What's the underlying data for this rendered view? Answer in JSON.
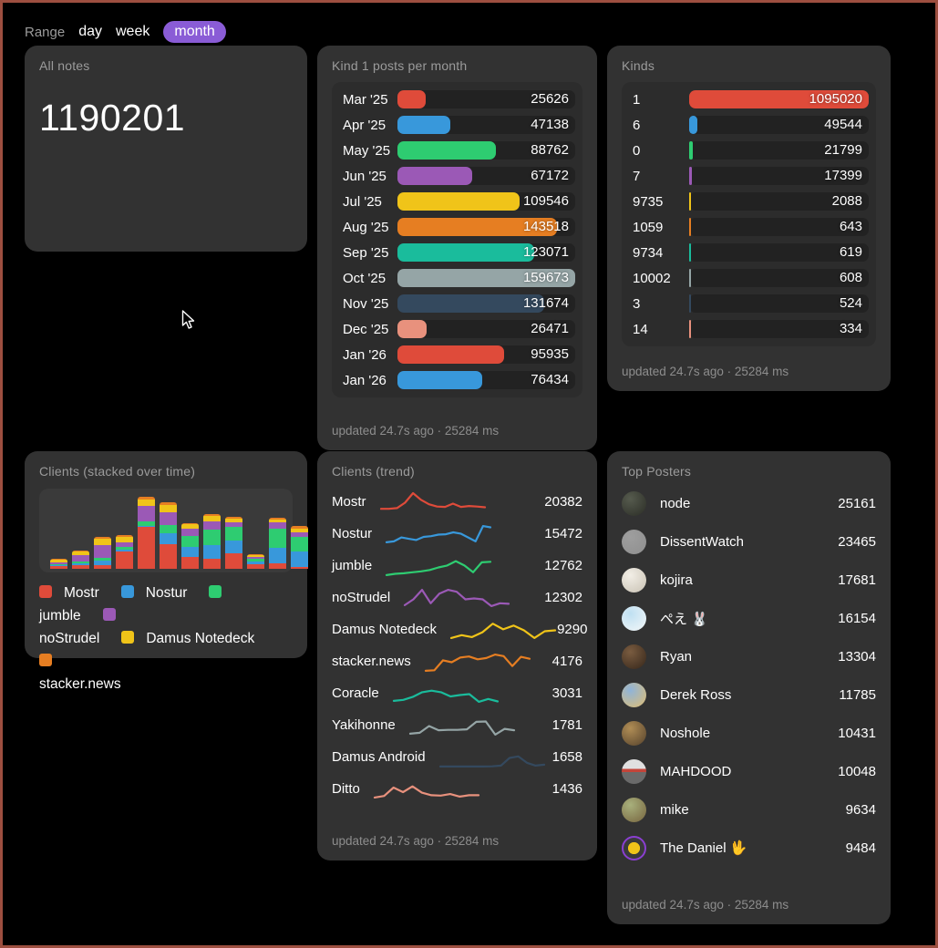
{
  "palette": {
    "red": "#df4b3a",
    "blue": "#3898db",
    "green": "#2ecc71",
    "purple": "#9b59b6",
    "yellow": "#f0c419",
    "orange": "#e67e22",
    "teal": "#1abc9c",
    "gray": "#95a5a6",
    "navy": "#34495e",
    "salmon": "#e8917d",
    "pill": "#8a5cd6",
    "card_bg": "#323232",
    "panel_bg": "#2c2c2c",
    "track_bg": "#222222",
    "page_border": "#9d4f40"
  },
  "range": {
    "label": "Range",
    "options": [
      {
        "label": "day",
        "active": false
      },
      {
        "label": "week",
        "active": false
      },
      {
        "label": "month",
        "active": true
      }
    ]
  },
  "cards": {
    "all_notes": {
      "title": "All notes",
      "value": "1190201"
    },
    "kind1": {
      "title": "Kind 1 posts per month",
      "footer": "updated 24.7s ago · 25284 ms",
      "max": 159673,
      "rows": [
        {
          "label": "Mar '25",
          "value": 25626,
          "color": "#df4b3a"
        },
        {
          "label": "Apr '25",
          "value": 47138,
          "color": "#3898db"
        },
        {
          "label": "May '25",
          "value": 88762,
          "color": "#2ecc71"
        },
        {
          "label": "Jun '25",
          "value": 67172,
          "color": "#9b59b6"
        },
        {
          "label": "Jul '25",
          "value": 109546,
          "color": "#f0c419"
        },
        {
          "label": "Aug '25",
          "value": 143518,
          "color": "#e67e22"
        },
        {
          "label": "Sep '25",
          "value": 123071,
          "color": "#1abc9c"
        },
        {
          "label": "Oct '25",
          "value": 159673,
          "color": "#95a5a6"
        },
        {
          "label": "Nov '25",
          "value": 131674,
          "color": "#34495e"
        },
        {
          "label": "Dec '25",
          "value": 26471,
          "color": "#e8917d"
        },
        {
          "label": "Jan '26",
          "value": 95935,
          "color": "#df4b3a"
        },
        {
          "label": "Jan '26",
          "value": 76434,
          "color": "#3898db"
        }
      ]
    },
    "kinds": {
      "title": "Kinds",
      "footer": "updated 24.7s ago · 25284 ms",
      "max": 1095020,
      "rows": [
        {
          "label": "1",
          "value": 1095020,
          "color": "#df4b3a"
        },
        {
          "label": "6",
          "value": 49544,
          "color": "#3898db"
        },
        {
          "label": "0",
          "value": 21799,
          "color": "#2ecc71"
        },
        {
          "label": "7",
          "value": 17399,
          "color": "#9b59b6"
        },
        {
          "label": "9735",
          "value": 2088,
          "color": "#f0c419"
        },
        {
          "label": "1059",
          "value": 643,
          "color": "#e67e22"
        },
        {
          "label": "9734",
          "value": 619,
          "color": "#1abc9c"
        },
        {
          "label": "10002",
          "value": 608,
          "color": "#95a5a6"
        },
        {
          "label": "3",
          "value": 524,
          "color": "#34495e"
        },
        {
          "label": "14",
          "value": 334,
          "color": "#e8917d"
        }
      ]
    },
    "stacked": {
      "title": "Clients (stacked over time)",
      "legend": [
        {
          "label": "Mostr",
          "color": "#df4b3a"
        },
        {
          "label": "Nostur",
          "color": "#3898db"
        },
        {
          "label": "jumble",
          "color": "#2ecc71"
        },
        {
          "label": "noStrudel",
          "color": "#9b59b6"
        },
        {
          "label": "Damus Notedeck",
          "color": "#f0c419"
        },
        {
          "label": "stacker.news",
          "color": "#e67e22"
        }
      ],
      "bars": [
        [
          3,
          1,
          1,
          2,
          3,
          1
        ],
        [
          4,
          2,
          2,
          7,
          4,
          1
        ],
        [
          4,
          5,
          3,
          14,
          7,
          2
        ],
        [
          19,
          2,
          3,
          5,
          6,
          2
        ],
        [
          46,
          1,
          5,
          17,
          7,
          3
        ],
        [
          27,
          12,
          9,
          14,
          8,
          3
        ],
        [
          13,
          11,
          12,
          8,
          5,
          1
        ],
        [
          11,
          15,
          17,
          9,
          6,
          2
        ],
        [
          17,
          14,
          15,
          5,
          4,
          2
        ],
        [
          5,
          3,
          3,
          2,
          2,
          1
        ],
        [
          6,
          17,
          21,
          7,
          3,
          2
        ],
        [
          2,
          17,
          16,
          5,
          4,
          3
        ]
      ]
    },
    "trend": {
      "title": "Clients (trend)",
      "footer": "updated 24.7s ago · 25284 ms",
      "rows": [
        {
          "name": "Mostr",
          "value": 20382,
          "color": "#df4b3a",
          "points": [
            0.18,
            0.18,
            0.22,
            0.5,
            1.0,
            0.65,
            0.42,
            0.3,
            0.28,
            0.45,
            0.28,
            0.33,
            0.3,
            0.26
          ]
        },
        {
          "name": "Nostur",
          "value": 15472,
          "color": "#3898db",
          "points": [
            0.1,
            0.15,
            0.35,
            0.28,
            0.22,
            0.38,
            0.42,
            0.5,
            0.52,
            0.62,
            0.55,
            0.35,
            0.15,
            0.95,
            0.88
          ]
        },
        {
          "name": "jumble",
          "value": 12762,
          "color": "#2ecc71",
          "points": [
            0.05,
            0.12,
            0.15,
            0.2,
            0.25,
            0.32,
            0.45,
            0.55,
            0.78,
            0.55,
            0.2,
            0.72,
            0.75
          ]
        },
        {
          "name": "noStrudel",
          "value": 12302,
          "color": "#9b59b6",
          "points": [
            0.15,
            0.45,
            0.95,
            0.25,
            0.75,
            0.95,
            0.85,
            0.45,
            0.5,
            0.45,
            0.1,
            0.25,
            0.22
          ]
        },
        {
          "name": "Damus Notedeck",
          "value": 9290,
          "color": "#f0c419",
          "points": [
            0.1,
            0.25,
            0.15,
            0.4,
            0.85,
            0.55,
            0.75,
            0.5,
            0.1,
            0.45,
            0.5
          ]
        },
        {
          "name": "stacker.news",
          "value": 4176,
          "color": "#e67e22",
          "points": [
            0.05,
            0.08,
            0.6,
            0.5,
            0.75,
            0.8,
            0.65,
            0.72,
            0.9,
            0.82,
            0.3,
            0.78,
            0.68
          ]
        },
        {
          "name": "Coracle",
          "value": 3031,
          "color": "#1abc9c",
          "points": [
            0.15,
            0.2,
            0.35,
            0.6,
            0.68,
            0.6,
            0.38,
            0.45,
            0.5,
            0.1,
            0.25,
            0.12
          ]
        },
        {
          "name": "Yakihonne",
          "value": 1781,
          "color": "#95a5a6",
          "points": [
            0.1,
            0.15,
            0.5,
            0.28,
            0.3,
            0.3,
            0.33,
            0.72,
            0.74,
            0.05,
            0.35,
            0.28
          ]
        },
        {
          "name": "Damus Android",
          "value": 1658,
          "color": "#34495e",
          "points": [
            0.05,
            0.05,
            0.05,
            0.05,
            0.05,
            0.05,
            0.06,
            0.1,
            0.5,
            0.58,
            0.25,
            0.1,
            0.15
          ]
        },
        {
          "name": "Ditto",
          "value": 1436,
          "color": "#e8917d",
          "points": [
            0.1,
            0.18,
            0.62,
            0.38,
            0.68,
            0.35,
            0.22,
            0.2,
            0.28,
            0.15,
            0.22,
            0.22
          ]
        }
      ]
    },
    "top_posters": {
      "title": "Top Posters",
      "footer": "updated 24.7s ago · 25284 ms",
      "rows": [
        {
          "name": "node",
          "value": 25161,
          "avatar": {
            "type": "duo",
            "colors": [
              "#565b4e",
              "#2b2d26"
            ]
          }
        },
        {
          "name": "DissentWatch",
          "value": 23465,
          "avatar": {
            "type": "duo",
            "colors": [
              "#9e9e9e",
              "#8f8f8f"
            ]
          }
        },
        {
          "name": "kojira",
          "value": 17681,
          "avatar": {
            "type": "duo",
            "colors": [
              "#f2eee6",
              "#c9c2b4"
            ]
          }
        },
        {
          "name": "ぺえ 🐰",
          "value": 16154,
          "avatar": {
            "type": "duo",
            "colors": [
              "#bfe0f2",
              "#f4f7f8"
            ]
          }
        },
        {
          "name": "Ryan",
          "value": 13304,
          "avatar": {
            "type": "duo",
            "colors": [
              "#7a5c40",
              "#35261a"
            ]
          }
        },
        {
          "name": "Derek Ross",
          "value": 11785,
          "avatar": {
            "type": "duo",
            "colors": [
              "#8fb4d9",
              "#e0bd72"
            ]
          }
        },
        {
          "name": "Noshole",
          "value": 10431,
          "avatar": {
            "type": "duo",
            "colors": [
              "#b08d55",
              "#55422c"
            ]
          }
        },
        {
          "name": "MAHDOOD",
          "value": 10048,
          "avatar": {
            "type": "stripe",
            "colors": [
              "#e0e0e0",
              "#6a6a6a"
            ],
            "stripe": "#c4453a"
          }
        },
        {
          "name": "mike",
          "value": 9634,
          "avatar": {
            "type": "duo",
            "colors": [
              "#a8b07c",
              "#77653f"
            ]
          }
        },
        {
          "name": "The Daniel 🖖",
          "value": 9484,
          "avatar": {
            "type": "ring",
            "colors": [
              "#f0c419",
              "#3a3a3a"
            ],
            "ring": "#8a3fd1"
          }
        }
      ]
    }
  },
  "chart_data": [
    {
      "type": "bar",
      "orientation": "horizontal",
      "title": "Kind 1 posts per month",
      "categories": [
        "Mar '25",
        "Apr '25",
        "May '25",
        "Jun '25",
        "Jul '25",
        "Aug '25",
        "Sep '25",
        "Oct '25",
        "Nov '25",
        "Dec '25",
        "Jan '26",
        "Jan '26"
      ],
      "values": [
        25626,
        47138,
        88762,
        67172,
        109546,
        143518,
        123071,
        159673,
        131674,
        26471,
        95935,
        76434
      ],
      "xlim": [
        0,
        159673
      ]
    },
    {
      "type": "bar",
      "orientation": "horizontal",
      "title": "Kinds",
      "categories": [
        "1",
        "6",
        "0",
        "7",
        "9735",
        "1059",
        "9734",
        "10002",
        "3",
        "14"
      ],
      "values": [
        1095020,
        49544,
        21799,
        17399,
        2088,
        643,
        619,
        608,
        524,
        334
      ],
      "xlim": [
        0,
        1095020
      ]
    },
    {
      "type": "bar",
      "stacked": true,
      "title": "Clients (stacked over time)",
      "note": "values are estimated relative heights (no axis labels shown)",
      "categories": [
        "1",
        "2",
        "3",
        "4",
        "5",
        "6",
        "7",
        "8",
        "9",
        "10",
        "11",
        "12"
      ],
      "series": [
        {
          "name": "Mostr",
          "values": [
            3,
            4,
            4,
            19,
            46,
            27,
            13,
            11,
            17,
            5,
            6,
            2
          ]
        },
        {
          "name": "Nostur",
          "values": [
            1,
            2,
            5,
            2,
            1,
            12,
            11,
            15,
            14,
            3,
            17,
            17
          ]
        },
        {
          "name": "jumble",
          "values": [
            1,
            2,
            3,
            3,
            5,
            9,
            12,
            17,
            15,
            3,
            21,
            16
          ]
        },
        {
          "name": "noStrudel",
          "values": [
            2,
            7,
            14,
            5,
            17,
            14,
            8,
            9,
            5,
            2,
            7,
            5
          ]
        },
        {
          "name": "Damus Notedeck",
          "values": [
            3,
            4,
            7,
            6,
            7,
            8,
            5,
            6,
            4,
            2,
            3,
            4
          ]
        },
        {
          "name": "stacker.news",
          "values": [
            1,
            1,
            2,
            2,
            3,
            3,
            1,
            2,
            2,
            1,
            2,
            3
          ]
        }
      ],
      "legend_position": "bottom"
    },
    {
      "type": "line",
      "title": "Clients (trend)",
      "note": "sparklines, y normalized 0-1; current totals shown at right",
      "series": [
        {
          "name": "Mostr",
          "current": 20382
        },
        {
          "name": "Nostur",
          "current": 15472
        },
        {
          "name": "jumble",
          "current": 12762
        },
        {
          "name": "noStrudel",
          "current": 12302
        },
        {
          "name": "Damus Notedeck",
          "current": 9290
        },
        {
          "name": "stacker.news",
          "current": 4176
        },
        {
          "name": "Coracle",
          "current": 3031
        },
        {
          "name": "Yakihonne",
          "current": 1781
        },
        {
          "name": "Damus Android",
          "current": 1658
        },
        {
          "name": "Ditto",
          "current": 1436
        }
      ]
    },
    {
      "type": "table",
      "title": "Top Posters",
      "categories": [
        "node",
        "DissentWatch",
        "kojira",
        "ぺえ 🐰",
        "Ryan",
        "Derek Ross",
        "Noshole",
        "MAHDOOD",
        "mike",
        "The Daniel 🖖"
      ],
      "values": [
        25161,
        23465,
        17681,
        16154,
        13304,
        11785,
        10431,
        10048,
        9634,
        9484
      ]
    }
  ]
}
